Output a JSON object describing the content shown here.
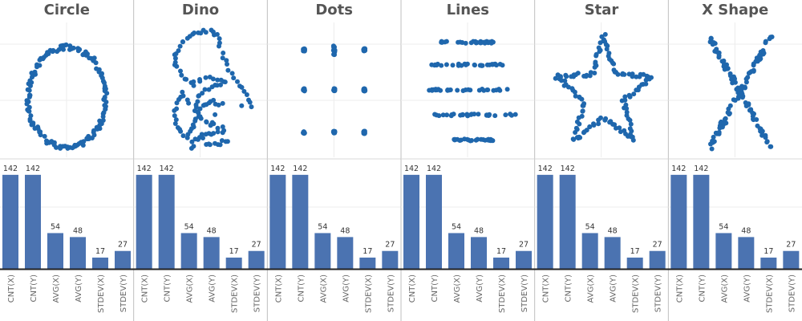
{
  "colors": {
    "point": "#1f67ad",
    "bar": "#4b73b1",
    "grid": "#ececec",
    "divider": "#bfbfbf",
    "baseline": "#222222",
    "title": "#555555"
  },
  "chart_data": {
    "type": "scatter+bar",
    "grid": true,
    "legend": "none",
    "categories": [
      "CNT(X)",
      "CNT(Y)",
      "AVG(X)",
      "AVG(Y)",
      "STDEV(X)",
      "STDEV(Y)"
    ],
    "bar_ylim": [
      0,
      160
    ],
    "panels": [
      {
        "title": "Circle",
        "values": [
          142,
          142,
          54,
          48,
          17,
          27
        ]
      },
      {
        "title": "Dino",
        "values": [
          142,
          142,
          54,
          48,
          17,
          27
        ]
      },
      {
        "title": "Dots",
        "values": [
          142,
          142,
          54,
          48,
          17,
          27
        ]
      },
      {
        "title": "Lines",
        "values": [
          142,
          142,
          54,
          48,
          17,
          27
        ]
      },
      {
        "title": "Star",
        "values": [
          142,
          142,
          54,
          48,
          17,
          27
        ]
      },
      {
        "title": "X Shape",
        "values": [
          142,
          142,
          54,
          48,
          17,
          27
        ]
      }
    ],
    "scatter_xlim": [
      15,
      100
    ],
    "scatter_ylim": [
      0,
      100
    ]
  }
}
